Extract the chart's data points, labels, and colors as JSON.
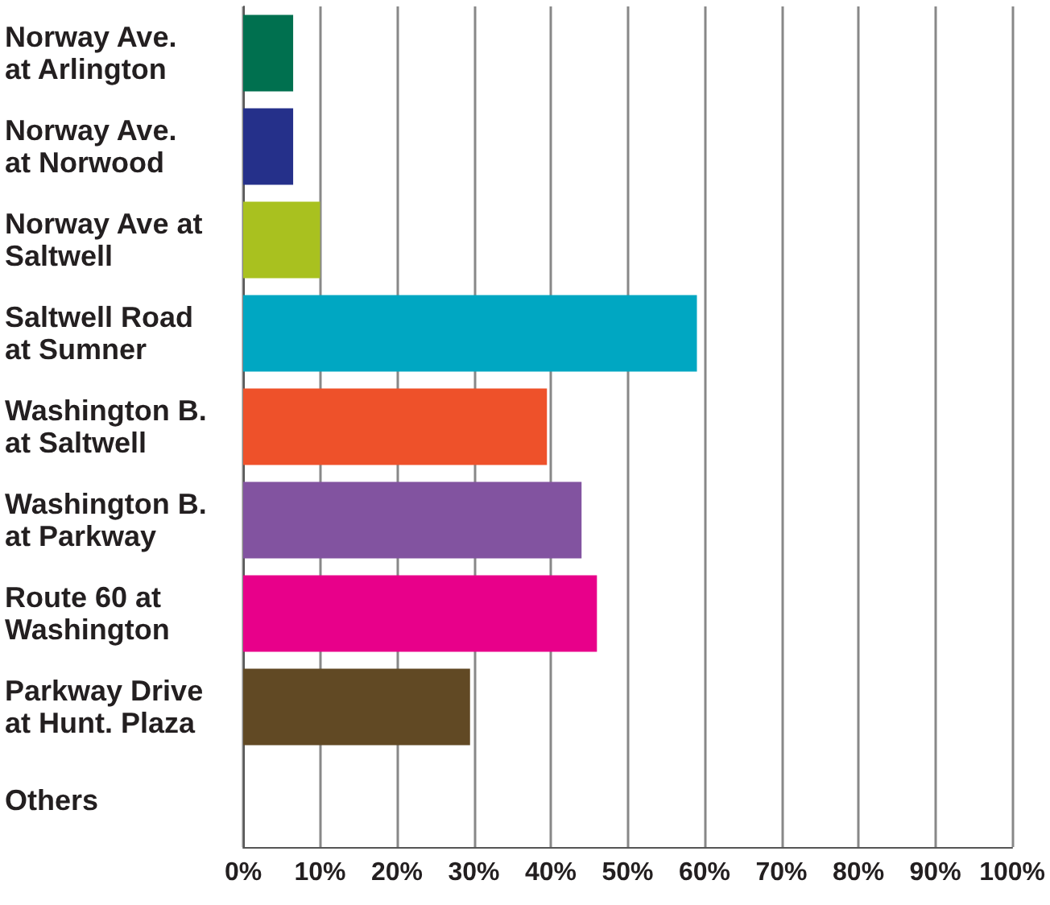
{
  "chart_data": {
    "type": "bar",
    "orientation": "horizontal",
    "categories": [
      "Norway Ave.\nat Arlington",
      "Norway Ave.\nat Norwood",
      "Norway Ave at\nSaltwell",
      "Saltwell Road\nat Sumner",
      "Washington B.\nat Saltwell",
      "Washington B.\nat Parkway",
      "Route 60 at\nWashington",
      "Parkway Drive\nat Hunt. Plaza",
      "Others"
    ],
    "values": [
      6.5,
      6.5,
      10,
      59,
      39.5,
      44,
      46,
      29.5,
      0
    ],
    "colors": [
      "#00704f",
      "#25308a",
      "#a9c11f",
      "#00a7c2",
      "#ee512a",
      "#8253a0",
      "#e8008a",
      "#614924",
      "#888888"
    ],
    "xlim": [
      0,
      100
    ],
    "xticks": [
      {
        "value": 0,
        "label": "0%"
      },
      {
        "value": 10,
        "label": "10%"
      },
      {
        "value": 20,
        "label": "20%"
      },
      {
        "value": 30,
        "label": "30%"
      },
      {
        "value": 40,
        "label": "40%"
      },
      {
        "value": 50,
        "label": "50%"
      },
      {
        "value": 60,
        "label": "60%"
      },
      {
        "value": 70,
        "label": "70%"
      },
      {
        "value": 80,
        "label": "80%"
      },
      {
        "value": 90,
        "label": "90%"
      },
      {
        "value": 100,
        "label": "100%"
      }
    ],
    "grid": "x"
  }
}
